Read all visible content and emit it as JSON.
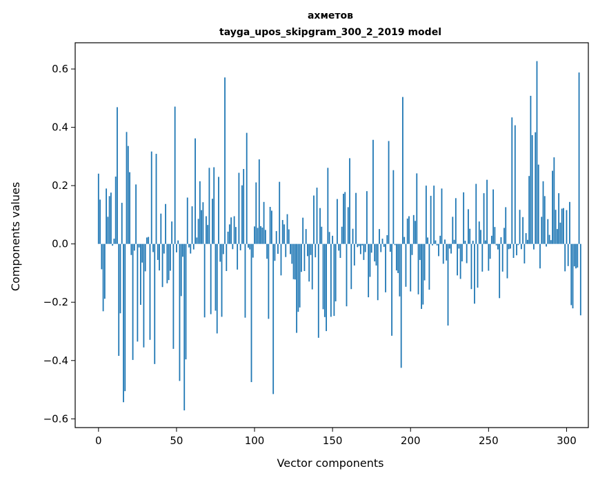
{
  "chart_data": {
    "type": "bar",
    "title": "ахметов",
    "subtitle": "tayga_upos_skipgram_300_2_2019 model",
    "xlabel": "Vector components",
    "ylabel": "Components values",
    "xlim": [
      -14.95,
      313.95
    ],
    "ylim": [
      -0.63,
      0.69
    ],
    "xticks": [
      0,
      50,
      100,
      150,
      200,
      250,
      300
    ],
    "yticks": [
      -0.6,
      -0.4,
      -0.2,
      0.0,
      0.2,
      0.4,
      0.6
    ],
    "ytick_labels": [
      "−0.6",
      "−0.4",
      "−0.2",
      "0.0",
      "0.2",
      "0.4",
      "0.6"
    ],
    "grid": false,
    "bar_color": "#1f77b4",
    "values": [
      0.241,
      0.152,
      -0.087,
      -0.231,
      -0.188,
      0.19,
      0.093,
      0.164,
      0.176,
      -0.006,
      0.018,
      0.231,
      0.469,
      -0.384,
      -0.238,
      0.141,
      -0.543,
      -0.505,
      0.384,
      0.336,
      0.246,
      -0.038,
      -0.398,
      -0.023,
      0.204,
      -0.335,
      -0.012,
      -0.209,
      -0.064,
      -0.355,
      -0.094,
      0.022,
      0.024,
      -0.329,
      0.317,
      -0.028,
      -0.412,
      0.309,
      -0.055,
      -0.091,
      0.104,
      -0.148,
      -0.033,
      0.137,
      -0.135,
      -0.124,
      -0.092,
      0.077,
      -0.36,
      0.471,
      -0.029,
      0.012,
      -0.47,
      -0.179,
      -0.044,
      -0.571,
      -0.396,
      0.159,
      -0.012,
      -0.033,
      0.129,
      -0.019,
      0.362,
      0.022,
      0.086,
      0.215,
      0.116,
      0.143,
      -0.252,
      0.095,
      0.065,
      0.261,
      -0.241,
      0.155,
      0.263,
      -0.229,
      -0.307,
      0.23,
      -0.061,
      -0.25,
      -0.035,
      0.571,
      -0.093,
      0.042,
      0.067,
      0.091,
      -0.018,
      0.095,
      0.058,
      -0.088,
      0.244,
      -0.022,
      0.201,
      0.257,
      -0.253,
      0.381,
      -0.013,
      -0.019,
      -0.474,
      -0.047,
      0.06,
      0.211,
      0.055,
      0.29,
      0.061,
      0.056,
      0.144,
      0.048,
      -0.051,
      -0.257,
      0.127,
      0.114,
      -0.515,
      -0.058,
      0.044,
      -0.034,
      0.213,
      -0.108,
      0.082,
      0.067,
      -0.045,
      0.102,
      0.05,
      -0.035,
      -0.068,
      -0.121,
      -0.122,
      -0.305,
      -0.233,
      -0.218,
      -0.096,
      0.09,
      -0.093,
      0.051,
      -0.042,
      -0.129,
      -0.038,
      -0.156,
      0.166,
      -0.046,
      0.193,
      -0.322,
      0.123,
      0.059,
      -0.224,
      -0.251,
      -0.299,
      0.261,
      0.041,
      -0.25,
      0.028,
      -0.247,
      -0.197,
      0.154,
      -0.023,
      -0.048,
      0.059,
      0.172,
      0.178,
      -0.214,
      0.126,
      0.294,
      -0.155,
      0.052,
      -0.074,
      0.175,
      -0.011,
      -0.007,
      -0.035,
      -0.005,
      -0.055,
      -0.028,
      0.181,
      -0.183,
      -0.113,
      -0.03,
      0.357,
      -0.06,
      -0.074,
      -0.193,
      0.051,
      -0.028,
      0.018,
      -0.01,
      -0.166,
      0.03,
      0.353,
      -0.027,
      -0.315,
      0.253,
      -0.004,
      -0.091,
      -0.1,
      -0.18,
      -0.425,
      0.504,
      0.024,
      -0.147,
      0.087,
      0.095,
      -0.163,
      -0.038,
      0.099,
      0.079,
      0.242,
      -0.173,
      -0.055,
      -0.223,
      -0.208,
      -0.125,
      0.2,
      0.022,
      -0.157,
      0.165,
      -0.005,
      0.2,
      0.012,
      -0.005,
      -0.042,
      0.028,
      0.19,
      -0.068,
      0.015,
      -0.057,
      -0.28,
      -0.016,
      -0.033,
      0.093,
      0.014,
      0.157,
      -0.108,
      -0.016,
      -0.12,
      -0.06,
      0.177,
      0.011,
      -0.066,
      0.119,
      0.052,
      -0.155,
      0.011,
      -0.205,
      0.206,
      -0.15,
      0.077,
      0.048,
      -0.095,
      0.174,
      0.012,
      0.22,
      -0.092,
      -0.051,
      0.028,
      0.187,
      0.058,
      -0.005,
      -0.019,
      -0.186,
      0.023,
      -0.095,
      0.055,
      0.126,
      -0.118,
      -0.018,
      -0.016,
      0.434,
      -0.048,
      0.407,
      -0.039,
      -0.004,
      0.117,
      -0.018,
      0.092,
      -0.067,
      0.037,
      0.014,
      0.233,
      0.508,
      0.373,
      -0.019,
      0.383,
      0.627,
      0.272,
      -0.084,
      0.093,
      0.215,
      0.164,
      -0.009,
      0.085,
      0.031,
      0.013,
      0.251,
      0.297,
      0.117,
      0.051,
      0.174,
      0.073,
      0.121,
      0.123,
      -0.094,
      0.116,
      -0.076,
      0.144,
      -0.21,
      -0.221,
      -0.077,
      -0.084,
      -0.081,
      0.588,
      -0.245
    ]
  }
}
